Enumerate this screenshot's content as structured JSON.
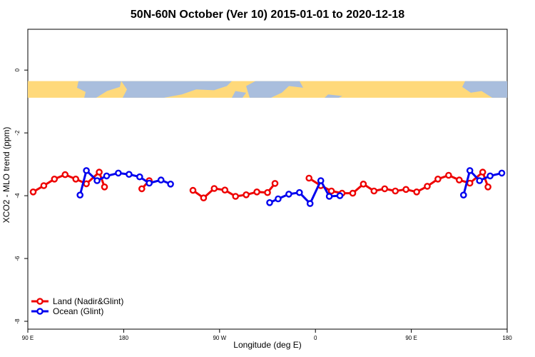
{
  "chart_data": {
    "type": "line",
    "title": "50N-60N October (Ver 10)   2015-01-01 to 2020-12-18",
    "xlabel": "Longitude (deg E)",
    "ylabel": "XCO2 - MLO trend (ppm)",
    "xlim": [
      90,
      540
    ],
    "ylim": [
      -8.25,
      1.3
    ],
    "x_ticks": [
      {
        "value": 90,
        "label": "90 E"
      },
      {
        "value": 180,
        "label": "180"
      },
      {
        "value": 270,
        "label": "90 W"
      },
      {
        "value": 360,
        "label": "0"
      },
      {
        "value": 450,
        "label": "90 E"
      },
      {
        "value": 540,
        "label": "180"
      }
    ],
    "y_ticks": [
      {
        "value": 0,
        "label": "0"
      },
      {
        "value": -2,
        "label": "-2"
      },
      {
        "value": -4,
        "label": "-4"
      },
      {
        "value": -6,
        "label": "-6"
      },
      {
        "value": -8,
        "label": "-8"
      }
    ],
    "map_band_y": [
      -0.35,
      -0.88
    ],
    "map_colors": {
      "land": "#FFD97A",
      "ocean": "#A9BEDD"
    },
    "legend_position": "bottom-left",
    "series": [
      {
        "name": "Land (Nadir&Glint)",
        "color": "#EE0000",
        "segments": [
          [
            [
              95,
              -3.88
            ],
            [
              105,
              -3.68
            ],
            [
              115,
              -3.47
            ],
            [
              125,
              -3.33
            ],
            [
              135,
              -3.47
            ],
            [
              145,
              -3.62
            ],
            [
              157,
              -3.25
            ],
            [
              162,
              -3.72
            ]
          ],
          [
            [
              197,
              -3.78
            ],
            [
              204,
              -3.52
            ]
          ],
          [
            [
              245,
              -3.83
            ],
            [
              255,
              -4.07
            ],
            [
              265,
              -3.77
            ],
            [
              275,
              -3.82
            ],
            [
              285,
              -4.02
            ],
            [
              295,
              -3.97
            ],
            [
              305,
              -3.88
            ],
            [
              315,
              -3.9
            ],
            [
              322,
              -3.61
            ]
          ],
          [
            [
              354,
              -3.44
            ],
            [
              365,
              -3.68
            ],
            [
              375,
              -3.85
            ],
            [
              385,
              -3.92
            ],
            [
              395,
              -3.92
            ],
            [
              405,
              -3.63
            ],
            [
              415,
              -3.85
            ],
            [
              425,
              -3.78
            ],
            [
              435,
              -3.85
            ],
            [
              445,
              -3.8
            ],
            [
              455,
              -3.88
            ],
            [
              465,
              -3.7
            ],
            [
              475,
              -3.47
            ],
            [
              485,
              -3.35
            ],
            [
              495,
              -3.5
            ],
            [
              505,
              -3.6
            ],
            [
              517,
              -3.25
            ],
            [
              522,
              -3.72
            ]
          ]
        ]
      },
      {
        "name": "Ocean (Glint)",
        "color": "#0000EE",
        "segments": [
          [
            [
              139,
              -3.98
            ],
            [
              145,
              -3.2
            ],
            [
              155,
              -3.52
            ],
            [
              164,
              -3.37
            ],
            [
              175,
              -3.28
            ],
            [
              185,
              -3.32
            ],
            [
              195,
              -3.4
            ],
            [
              204,
              -3.6
            ],
            [
              215,
              -3.5
            ],
            [
              224,
              -3.63
            ]
          ],
          [
            [
              317,
              -4.22
            ],
            [
              325,
              -4.1
            ],
            [
              335,
              -3.95
            ],
            [
              345,
              -3.9
            ],
            [
              355,
              -4.25
            ],
            [
              365,
              -3.52
            ],
            [
              373,
              -4.02
            ],
            [
              383,
              -4.0
            ]
          ],
          [
            [
              499,
              -3.98
            ],
            [
              505,
              -3.2
            ],
            [
              514,
              -3.52
            ],
            [
              524,
              -3.37
            ],
            [
              535,
              -3.28
            ]
          ]
        ]
      }
    ]
  }
}
